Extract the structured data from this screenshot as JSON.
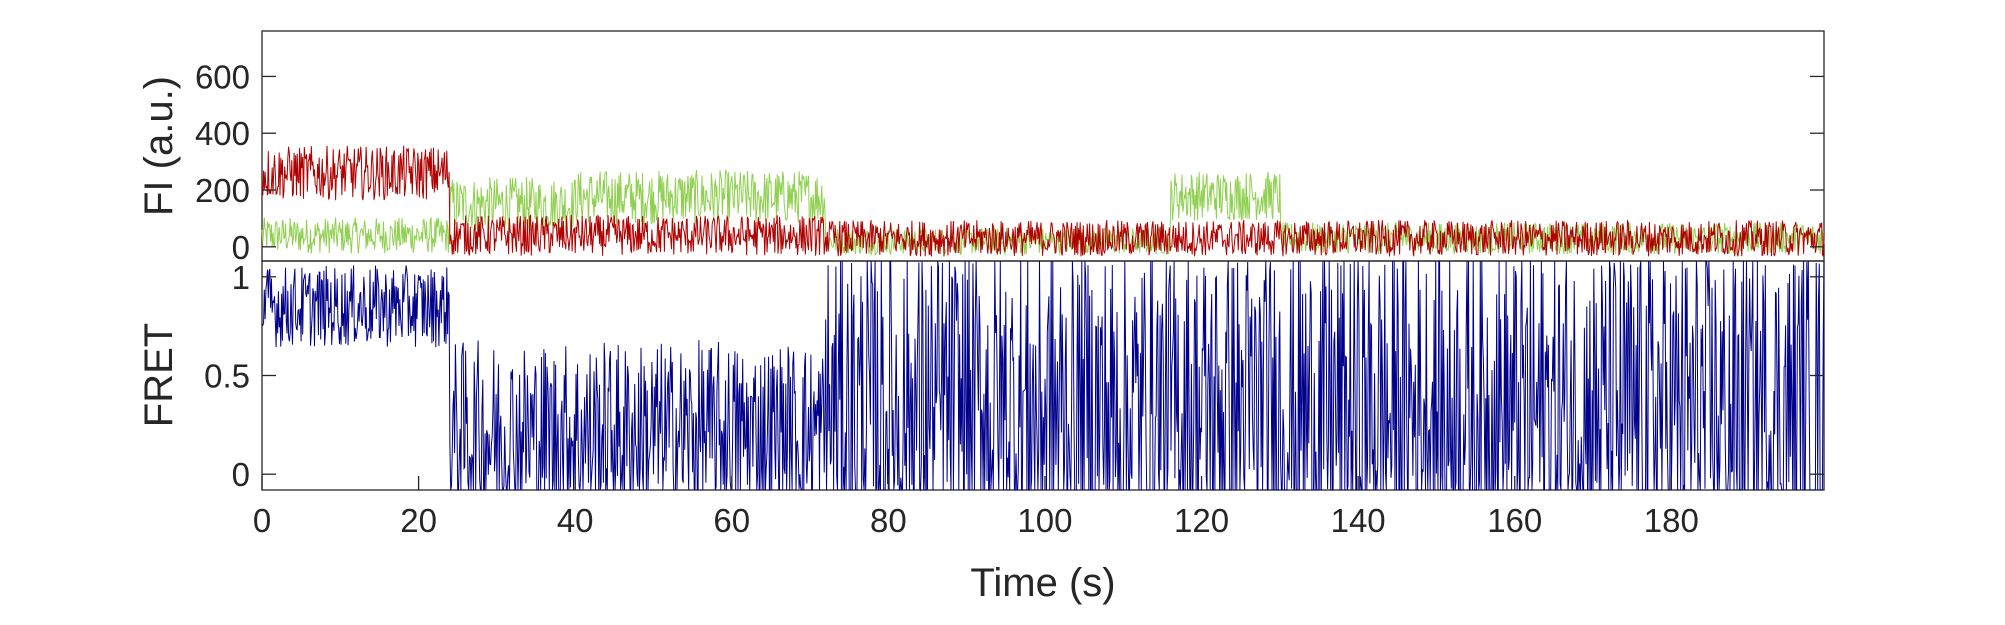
{
  "chart_data": [
    {
      "type": "line",
      "panel": "top",
      "ylabel": "FI (a.u.)",
      "xlabel": "",
      "xlim": [
        0,
        199.5
      ],
      "ylim": [
        -50,
        760
      ],
      "yticks": [
        0,
        200,
        400,
        600
      ],
      "ytick_labels": [
        "0",
        "200",
        "400",
        "600"
      ],
      "series": [
        {
          "color": "#90d050",
          "segments": [
            {
              "t0": 0,
              "t1": 24,
              "mean": 40,
              "amp": 40
            },
            {
              "t0": 24,
              "t1": 40,
              "mean": 150,
              "amp": 60
            },
            {
              "t0": 40,
              "t1": 72,
              "mean": 175,
              "amp": 60
            },
            {
              "t0": 72,
              "t1": 116,
              "mean": 20,
              "amp": 30
            },
            {
              "t0": 116,
              "t1": 130,
              "mean": 180,
              "amp": 55
            },
            {
              "t0": 130,
              "t1": 199.5,
              "mean": 30,
              "amp": 35
            }
          ]
        },
        {
          "color": "#b00000",
          "segments": [
            {
              "t0": 0,
              "t1": 24,
              "mean": 260,
              "amp": 60
            },
            {
              "t0": 24,
              "t1": 72,
              "mean": 40,
              "amp": 45
            },
            {
              "t0": 72,
              "t1": 199.5,
              "mean": 30,
              "amp": 40
            }
          ]
        }
      ]
    },
    {
      "type": "line",
      "panel": "bottom",
      "ylabel": "FRET",
      "xlabel": "Time (s)",
      "xlim": [
        0,
        199.5
      ],
      "ylim": [
        -0.08,
        1.08
      ],
      "yticks": [
        0,
        0.5,
        1
      ],
      "ytick_labels": [
        "0",
        "0.5",
        "1"
      ],
      "xticks": [
        0,
        20,
        40,
        60,
        80,
        100,
        120,
        140,
        160,
        180
      ],
      "xtick_labels": [
        "0",
        "20",
        "40",
        "60",
        "80",
        "100",
        "120",
        "140",
        "160",
        "180"
      ],
      "series": [
        {
          "color": "#00008b",
          "segments": [
            {
              "t0": 0,
              "t1": 24,
              "mean": 0.85,
              "amp": 0.13
            },
            {
              "t0": 24,
              "t1": 72,
              "mean": 0.2,
              "amp": 0.3
            },
            {
              "t0": 72,
              "t1": 199.5,
              "mean": 0.3,
              "amp": 0.55
            }
          ]
        }
      ]
    }
  ]
}
